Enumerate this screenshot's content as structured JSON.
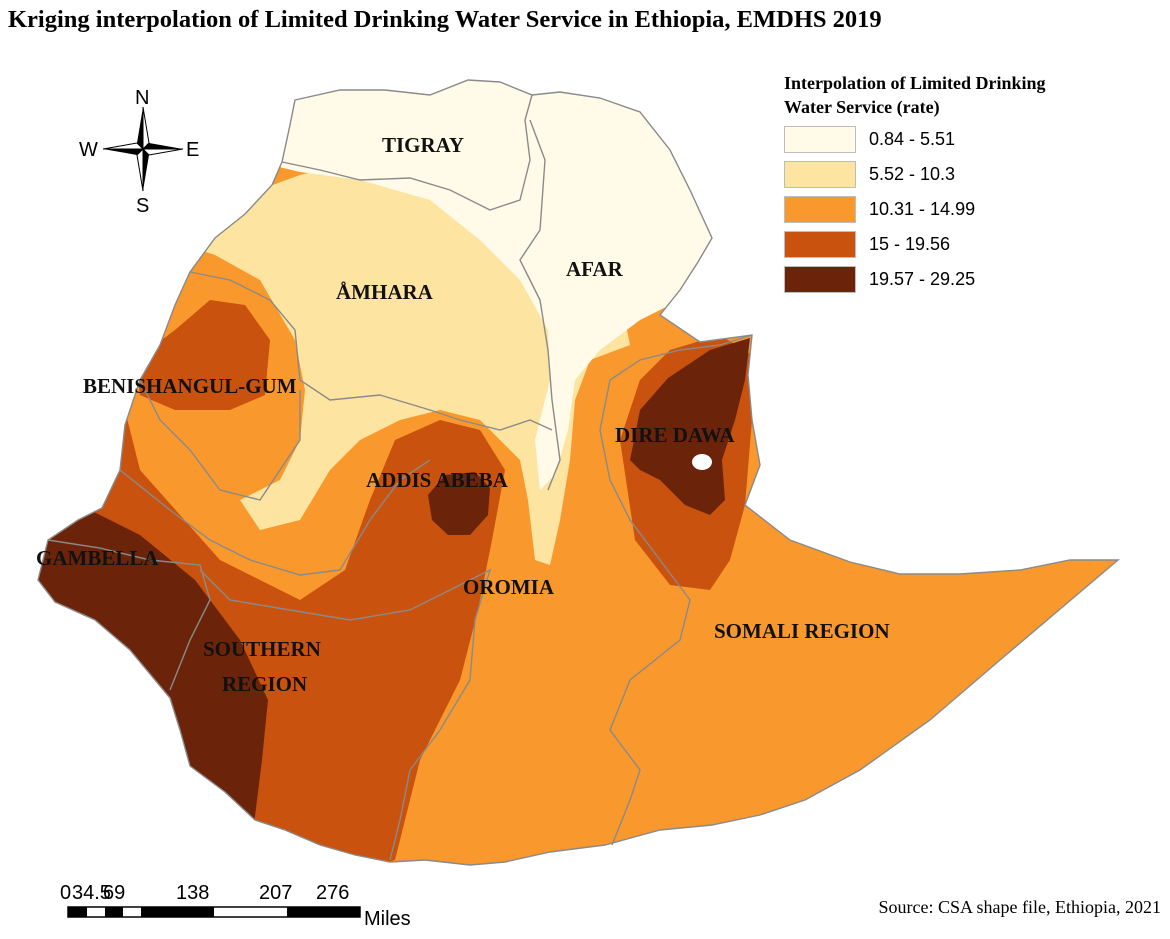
{
  "title": "Kriging interpolation of Limited Drinking Water Service in Ethiopia, EMDHS 2019",
  "legend": {
    "title_line1": "Interpolation of Limited Drinking",
    "title_line2": "Water Service (rate)",
    "classes": [
      {
        "label": "0.84 - 5.51",
        "color": "#fffbe8"
      },
      {
        "label": "5.52 - 10.3",
        "color": "#fde4a1"
      },
      {
        "label": "10.31 - 14.99",
        "color": "#f9982d"
      },
      {
        "label": "15 - 19.56",
        "color": "#c9520f"
      },
      {
        "label": "19.57 - 29.25",
        "color": "#6b2409"
      }
    ]
  },
  "regions": {
    "tigray": "TIGRAY",
    "amhara": "ÅMHARA",
    "afar": "AFAR",
    "benishangul": "BENISHANGUL-GUM",
    "dire_dawa": "DIRE DAWA",
    "addis_ababa": "ADDIS ABEBA",
    "gambella": "GAMBELLA",
    "oromia": "OROMIA",
    "southern_1": "SOUTHERN",
    "southern_2": "REGION",
    "somali": "SOMALI REGION"
  },
  "compass": {
    "n": "N",
    "s": "S",
    "e": "E",
    "w": "W"
  },
  "scale_bar": {
    "ticks": [
      "0",
      "34.5",
      "69",
      "138",
      "207",
      "276"
    ],
    "unit": "Miles"
  },
  "source": "Source: CSA shape file, Ethiopia, 2021",
  "colors": {
    "boundary": "#8a8a8a",
    "background": "#ffffff"
  }
}
